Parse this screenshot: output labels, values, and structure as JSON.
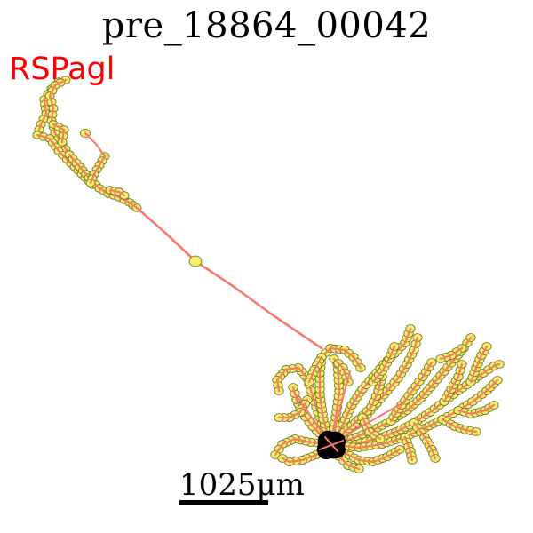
{
  "title": "pre_18864_00042",
  "region_label": "RSPagl",
  "scale_bar": {
    "label": "1025μm"
  },
  "colors": {
    "neurite": "#f87a6b",
    "node_fill": "#f5ef6a",
    "node_stroke": "#7c7a2a",
    "soma": "#000000",
    "region_label": "#ff0000"
  }
}
